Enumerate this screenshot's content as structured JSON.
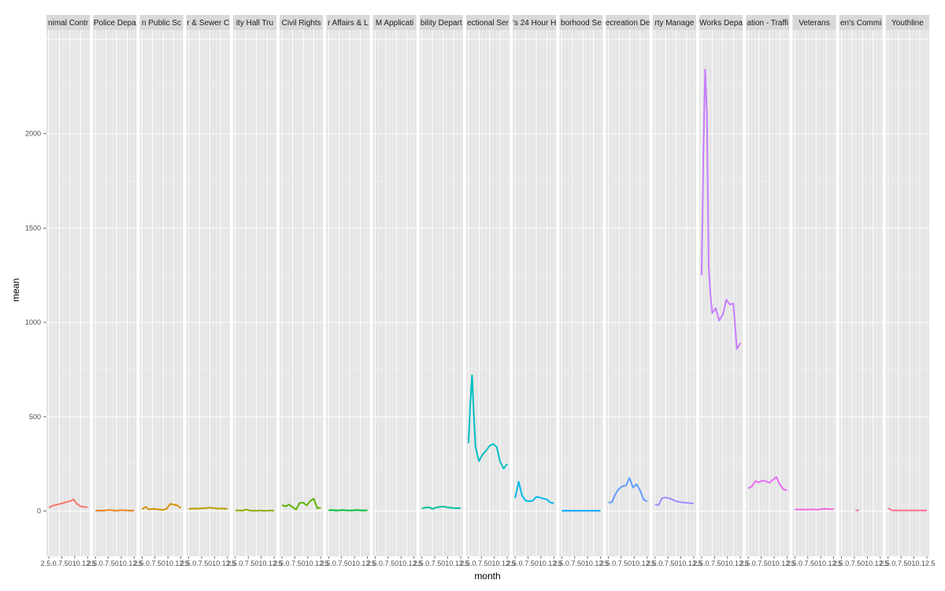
{
  "chart_data": {
    "type": "line",
    "xlabel": "month",
    "ylabel": "mean",
    "ylim": [
      -240,
      2550
    ],
    "yticks": [
      0,
      500,
      1000,
      1500,
      2000
    ],
    "xlim": [
      1,
      12
    ],
    "x_tick_text": "2.5.0.7.5010.12.5",
    "grid": true,
    "legend": "none",
    "panels": [
      {
        "label": "nimal Contr",
        "color": "#F8766D",
        "x": [
          1,
          2,
          3,
          4,
          5,
          6,
          7,
          8,
          9,
          10,
          11,
          12
        ],
        "y": [
          18,
          28,
          32,
          37,
          42,
          48,
          52,
          62,
          38,
          25,
          22,
          20
        ]
      },
      {
        "label": "Police Depa",
        "color": "#E88526",
        "x": [
          1,
          2,
          3,
          4,
          5,
          6,
          7,
          8,
          9,
          10,
          11,
          12
        ],
        "y": [
          2,
          3,
          2,
          4,
          6,
          3,
          2,
          5,
          4,
          3,
          2,
          3
        ]
      },
      {
        "label": "n Public Sc",
        "color": "#D39200",
        "x": [
          1,
          2,
          3,
          4,
          5,
          6,
          7,
          8,
          9,
          10,
          11,
          12
        ],
        "y": [
          10,
          22,
          8,
          12,
          10,
          8,
          6,
          12,
          38,
          34,
          30,
          15
        ]
      },
      {
        "label": "r & Sewer C",
        "color": "#B79F00",
        "x": [
          1,
          2,
          3,
          4,
          5,
          6,
          7,
          8,
          9,
          10,
          11,
          12
        ],
        "y": [
          12,
          13,
          14,
          13,
          15,
          16,
          18,
          16,
          14,
          13,
          13,
          12
        ]
      },
      {
        "label": "ity Hall Tru",
        "color": "#93AA00",
        "x": [
          1,
          2,
          3,
          4,
          5,
          6,
          7,
          8,
          9,
          10,
          11,
          12
        ],
        "y": [
          3,
          4,
          2,
          8,
          3,
          2,
          2,
          3,
          2,
          2,
          3,
          2
        ]
      },
      {
        "label": "Civil Rights",
        "color": "#5EB300",
        "x": [
          1,
          2,
          3,
          4,
          5,
          6,
          7,
          8,
          9,
          10,
          11,
          12
        ],
        "y": [
          32,
          25,
          35,
          20,
          8,
          42,
          45,
          30,
          52,
          66,
          15,
          18
        ]
      },
      {
        "label": "r Affairs & L",
        "color": "#00BA38",
        "x": [
          1,
          2,
          3,
          4,
          5,
          6,
          7,
          8,
          9,
          10,
          11,
          12
        ],
        "y": [
          4,
          5,
          3,
          4,
          5,
          4,
          3,
          4,
          5,
          4,
          3,
          4
        ]
      },
      {
        "label": "M Applicati",
        "color": "#00BF74",
        "x": [],
        "y": []
      },
      {
        "label": "bility Depart",
        "color": "#00C19F",
        "x": [
          1,
          2,
          3,
          4,
          5,
          6,
          7,
          8,
          9,
          10,
          11,
          12
        ],
        "y": [
          14,
          18,
          20,
          12,
          18,
          22,
          24,
          20,
          18,
          16,
          15,
          15
        ]
      },
      {
        "label": "ectional Ser",
        "color": "#00BFC4",
        "x": [
          1,
          1.5,
          2,
          2.5,
          3,
          3.5,
          4,
          5,
          6,
          7,
          8,
          9,
          10,
          11,
          12
        ],
        "y": [
          360,
          560,
          720,
          520,
          340,
          300,
          265,
          300,
          320,
          345,
          355,
          340,
          260,
          225,
          250
        ]
      },
      {
        "label": "'s 24 Hour H",
        "color": "#00B8E7",
        "x": [
          1,
          2,
          3,
          4,
          5,
          6,
          7,
          8,
          9,
          10,
          11,
          12
        ],
        "y": [
          70,
          155,
          80,
          55,
          52,
          55,
          75,
          72,
          66,
          62,
          45,
          42
        ]
      },
      {
        "label": "borhood Se",
        "color": "#00A9FF",
        "x": [
          1,
          2,
          3,
          4,
          5,
          6,
          7,
          8,
          9,
          10,
          11,
          12
        ],
        "y": [
          2,
          2,
          2,
          2,
          2,
          2,
          2,
          2,
          2,
          2,
          2,
          2
        ]
      },
      {
        "label": "ecreation De",
        "color": "#619CFF",
        "x": [
          1,
          2,
          3,
          4,
          5,
          6,
          7,
          8,
          9,
          10,
          11,
          12
        ],
        "y": [
          45,
          46,
          90,
          118,
          132,
          135,
          175,
          125,
          142,
          110,
          62,
          50
        ]
      },
      {
        "label": "rty Manage",
        "color": "#A58AFF",
        "x": [
          1,
          2,
          3,
          4,
          5,
          6,
          7,
          8,
          9,
          10,
          11,
          12
        ],
        "y": [
          35,
          32,
          68,
          72,
          68,
          60,
          52,
          48,
          45,
          44,
          42,
          40
        ]
      },
      {
        "label": "Works Depa",
        "color": "#C77CFF",
        "x": [
          1,
          1.5,
          2,
          2.5,
          3,
          3.5,
          4,
          5,
          6,
          7,
          8,
          9,
          10,
          11,
          12
        ],
        "y": [
          1250,
          1900,
          2340,
          2100,
          1300,
          1150,
          1050,
          1075,
          1010,
          1040,
          1120,
          1095,
          1100,
          860,
          890
        ]
      },
      {
        "label": "ation - Traffi",
        "color": "#E76BF3",
        "x": [
          1,
          2,
          3,
          4,
          5,
          6,
          7,
          8,
          9,
          10,
          11,
          12
        ],
        "y": [
          120,
          130,
          158,
          152,
          162,
          158,
          150,
          165,
          180,
          140,
          115,
          110
        ]
      },
      {
        "label": "Veterans",
        "color": "#F564E3",
        "x": [
          1,
          2,
          3,
          4,
          5,
          6,
          7,
          8,
          9,
          10,
          11,
          12
        ],
        "y": [
          8,
          8,
          8,
          8,
          8,
          9,
          8,
          8,
          12,
          12,
          10,
          10
        ]
      },
      {
        "label": "en's Commi",
        "color": "#FF64B0",
        "x": [
          5,
          5.5,
          6
        ],
        "y": [
          5,
          3,
          5
        ]
      },
      {
        "label": "Youthline",
        "color": "#FF6C91",
        "x": [
          1,
          2,
          3,
          4,
          5,
          6,
          7,
          8,
          9,
          10,
          11,
          12
        ],
        "y": [
          15,
          4,
          3,
          3,
          3,
          3,
          3,
          3,
          3,
          3,
          3,
          3
        ]
      }
    ]
  }
}
